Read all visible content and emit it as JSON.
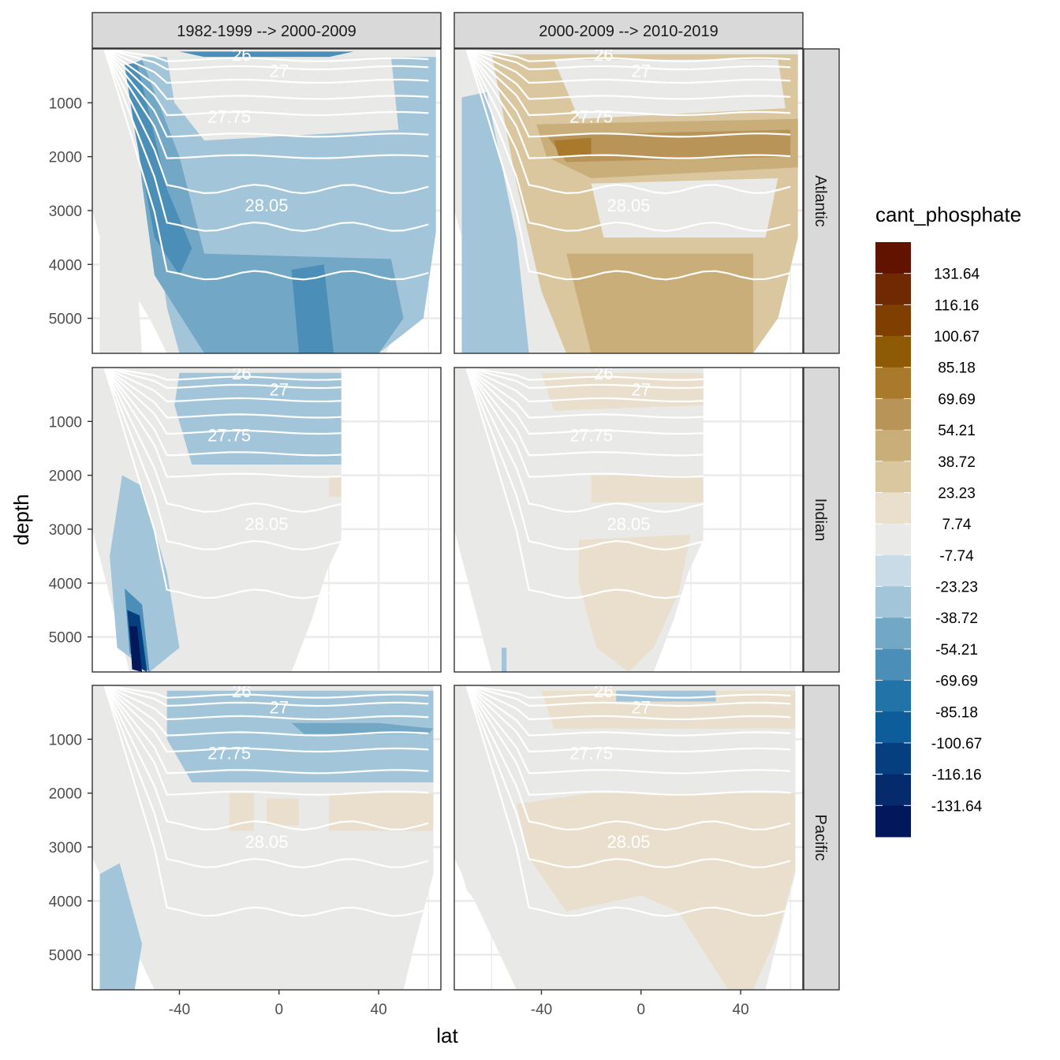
{
  "chart_data": {
    "type": "heatmap",
    "subtype": "faceted filled-contour sections",
    "fill_variable": "cant_phosphate",
    "xlabel": "lat",
    "ylabel": "depth",
    "x_ticks": [
      -40,
      0,
      40
    ],
    "x_range": [
      -75,
      65
    ],
    "y_ticks": [
      1000,
      2000,
      3000,
      4000,
      5000
    ],
    "y_range": [
      5650,
      0
    ],
    "y_reversed": true,
    "facet_columns": [
      "1982-1999 --> 2000-2009",
      "2000-2009 --> 2010-2019"
    ],
    "facet_rows": [
      "Atlantic",
      "Indian",
      "Pacific"
    ],
    "ocean_lat_max": {
      "Atlantic": 63,
      "Indian": 25,
      "Pacific": 62
    },
    "isopycnal_labels": [
      "26",
      "27",
      "27.75",
      "28.05"
    ],
    "legend": {
      "title": "cant_phosphate",
      "breaks": [
        131.64,
        116.16,
        100.67,
        85.18,
        69.69,
        54.21,
        38.72,
        23.23,
        7.74,
        -7.74,
        -23.23,
        -38.72,
        -54.21,
        -69.69,
        -85.18,
        -100.67,
        -116.16,
        -131.64
      ],
      "colors": [
        "#611300",
        "#6f2a03",
        "#7e3f00",
        "#8f5a05",
        "#a97a2c",
        "#b99458",
        "#c9ae7a",
        "#dbc79f",
        "#e9dfcc",
        "#e9eae8",
        "#c9dbe7",
        "#a2c5d9",
        "#72a8c6",
        "#4b8fb9",
        "#2274a8",
        "#0c5d99",
        "#063f80",
        "#052b6c",
        "#03185b"
      ]
    },
    "panels": [
      {
        "column": "1982-1999 --> 2000-2009",
        "row": "Atlantic",
        "dominant_class": -23.23,
        "pattern": "negative change throughout, strongest (-38.72 to -54.21) in deep southern water and near 0-20N at depth"
      },
      {
        "column": "2000-2009 --> 2010-2019",
        "row": "Atlantic",
        "dominant_class": 23.23,
        "pattern": "positive change, strongest (38.72 to 69.69) in core at ~1500-2000 m, slight negative near southern boundary"
      },
      {
        "column": "1982-1999 --> 2000-2009",
        "row": "Indian",
        "dominant_class": 0,
        "pattern": "negative upper 2000 m north of 40S, strong negative (< -131.64) blob at ~55S 5000 m"
      },
      {
        "column": "2000-2009 --> 2010-2019",
        "row": "Indian",
        "dominant_class": 0,
        "pattern": "weak positive upper layer and deep positive lobe between 20S and 20N"
      },
      {
        "column": "1982-1999 --> 2000-2009",
        "row": "Pacific",
        "dominant_class": 0,
        "pattern": "negative upper 1800 m, weak positive patches near 2000-2700 m"
      },
      {
        "column": "2000-2009 --> 2010-2019",
        "row": "Pacific",
        "dominant_class": 0,
        "pattern": "positive band near surface, broad positive deep body 2000-4500 m"
      }
    ]
  }
}
